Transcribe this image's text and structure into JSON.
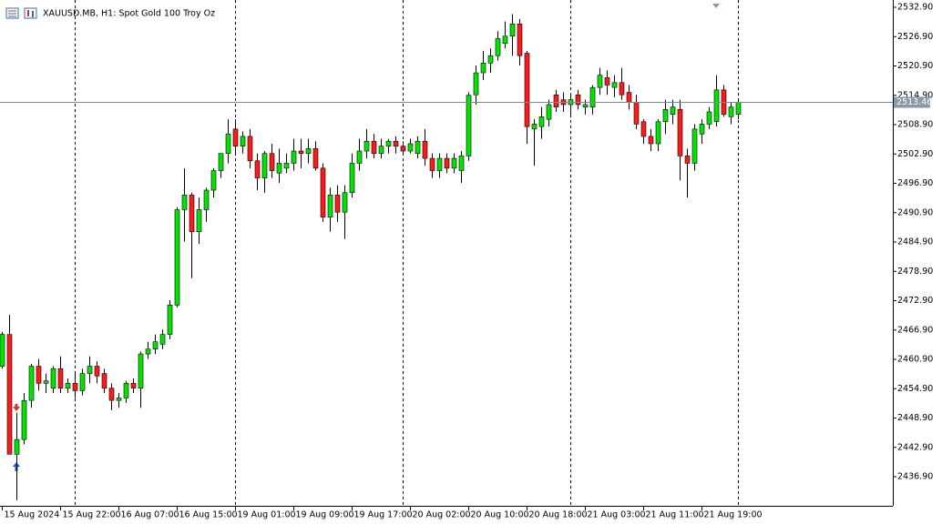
{
  "chart_data": {
    "type": "candlestick",
    "title": "XAUUSD.MB, H1:  Spot Gold 100 Troy Oz",
    "categories": [
      "15 Aug 2024",
      null,
      null,
      null,
      null,
      null,
      null,
      null,
      "15 Aug 22:00",
      null,
      null,
      null,
      null,
      null,
      null,
      null,
      "16 Aug 07:00",
      null,
      null,
      null,
      null,
      null,
      null,
      null,
      "16 Aug 15:00",
      null,
      null,
      null,
      null,
      null,
      null,
      null,
      "19 Aug 01:00",
      null,
      null,
      null,
      null,
      null,
      null,
      null,
      "19 Aug 09:00",
      null,
      null,
      null,
      null,
      null,
      null,
      null,
      "19 Aug 17:00",
      null,
      null,
      null,
      null,
      null,
      null,
      null,
      "20 Aug 02:00",
      null,
      null,
      null,
      null,
      null,
      null,
      null,
      "20 Aug 10:00",
      null,
      null,
      null,
      null,
      null,
      null,
      null,
      "20 Aug 18:00",
      null,
      null,
      null,
      null,
      null,
      null,
      null,
      "21 Aug 03:00",
      null,
      null,
      null,
      null,
      null,
      null,
      null,
      "21 Aug 11:00",
      null,
      null,
      null,
      null,
      null,
      null,
      null,
      "21 Aug 19:00",
      null,
      null,
      null,
      null,
      null
    ],
    "open": [
      2459.5,
      2466,
      2441.5,
      2444.5,
      2452.5,
      2459.5,
      2456,
      2455,
      2459,
      2455,
      2456,
      2454.5,
      2458,
      2459.5,
      2458,
      2455,
      2452.5,
      2453,
      2456,
      2455,
      2462,
      2463,
      2464,
      2466,
      2472,
      2491.5,
      2494.5,
      2487,
      2491.5,
      2495.5,
      2499.5,
      2503,
      2508,
      2504.5,
      2506.5,
      2501.5,
      2498,
      2503,
      2499,
      2500,
      2501,
      2503.5,
      2503,
      2504,
      2500,
      2490,
      2494.5,
      2491,
      2495,
      2501,
      2503.5,
      2505.5,
      2503,
      2504.5,
      2505.5,
      2504.5,
      2503.5,
      2503,
      2505.5,
      2502,
      2499.5,
      2502,
      2500,
      2499.5,
      2502.5,
      2515,
      2519.5,
      2521.5,
      2523,
      2525.5,
      2527,
      2529.5,
      2523.5,
      2508,
      2508.5,
      2510,
      2515,
      2514,
      2513,
      2515,
      2512.5,
      2512.5,
      2516.5,
      2518.5,
      2516.5,
      2517.5,
      2515.5,
      2513.5,
      2509.5,
      2506.5,
      2505,
      2509.5,
      2511,
      2512,
      2502.5,
      2501,
      2507,
      2509,
      2509.5,
      2516,
      2510.5,
      2511
    ],
    "high": [
      2466.5,
      2470,
      2450,
      2454,
      2460,
      2461,
      2458,
      2459.5,
      2461.5,
      2457,
      2458,
      2459,
      2461.5,
      2460.5,
      2459,
      2456,
      2454,
      2456.5,
      2457,
      2462.5,
      2464.5,
      2466,
      2467,
      2473,
      2492,
      2500,
      2495,
      2494,
      2496,
      2500,
      2503,
      2510,
      2510,
      2507.5,
      2508,
      2503,
      2503.5,
      2505,
      2504,
      2503,
      2506,
      2506,
      2506,
      2505.5,
      2501,
      2496,
      2496.5,
      2496.5,
      2503,
      2506,
      2508,
      2507,
      2506,
      2506,
      2506.5,
      2505.5,
      2506,
      2506.5,
      2508,
      2503,
      2503,
      2503,
      2503,
      2503.5,
      2515.5,
      2521,
      2524,
      2524.5,
      2528,
      2530,
      2531.5,
      2530.5,
      2524,
      2510,
      2512.5,
      2514,
      2516,
      2515.5,
      2515,
      2516,
      2514,
      2517,
      2520.5,
      2520,
      2519,
      2520.5,
      2517,
      2515,
      2510,
      2508,
      2510,
      2514,
      2514,
      2514,
      2504,
      2509,
      2510,
      2512.5,
      2519,
      2517,
      2513.5,
      2514
    ],
    "low": [
      2459,
      2441.5,
      2432.1,
      2443.5,
      2451,
      2454.5,
      2454,
      2454,
      2454,
      2454,
      2453,
      2453.5,
      2456,
      2456,
      2454,
      2450.5,
      2451,
      2452,
      2454,
      2451,
      2461,
      2462,
      2463,
      2465,
      2471.5,
      2485,
      2477.5,
      2484.5,
      2489,
      2494,
      2498,
      2501,
      2503,
      2503,
      2500,
      2495.5,
      2495,
      2498,
      2497,
      2499,
      2499.5,
      2500,
      2501,
      2499.5,
      2489,
      2487,
      2489,
      2485.5,
      2494,
      2499.5,
      2502,
      2502,
      2502,
      2503,
      2503,
      2503,
      2503,
      2502,
      2500.5,
      2498,
      2498,
      2499,
      2499,
      2497,
      2501.5,
      2513,
      2518,
      2519.5,
      2522,
      2524.5,
      2523,
      2521,
      2505,
      2500.5,
      2506,
      2508.5,
      2511.5,
      2511.5,
      2511,
      2512,
      2511,
      2511,
      2515,
      2515,
      2514.5,
      2514,
      2512,
      2508,
      2505,
      2503.5,
      2503.5,
      2507,
      2509,
      2497.5,
      2494,
      2499.5,
      2505,
      2508,
      2508.5,
      2510.5,
      2509,
      2510
    ],
    "close": [
      2466,
      2441.5,
      2444.5,
      2452.5,
      2459.5,
      2456,
      2456.5,
      2459,
      2455,
      2456,
      2454.5,
      2458,
      2459.5,
      2457.5,
      2455,
      2452.5,
      2453,
      2456,
      2455,
      2462,
      2463,
      2464.5,
      2466,
      2472,
      2491.5,
      2494.5,
      2487,
      2491.5,
      2495.5,
      2499.5,
      2503,
      2507,
      2504.5,
      2506.5,
      2501.5,
      2498,
      2503,
      2499.5,
      2501,
      2501,
      2503.5,
      2503,
      2504,
      2500,
      2490,
      2494.5,
      2491,
      2495,
      2501,
      2503.5,
      2505.5,
      2503,
      2504.5,
      2505.5,
      2504.5,
      2503.5,
      2505,
      2505.5,
      2502,
      2499.5,
      2502,
      2500,
      2502,
      2502.5,
      2514.9,
      2519.5,
      2521.5,
      2523,
      2526.5,
      2527,
      2529.5,
      2523,
      2508.5,
      2509,
      2510.5,
      2513,
      2512.5,
      2513,
      2514,
      2513,
      2513,
      2516.5,
      2519,
      2517,
      2517.5,
      2515,
      2513.5,
      2509,
      2506.5,
      2505,
      2509.5,
      2512,
      2512.5,
      2502.5,
      2501,
      2508,
      2509,
      2511.5,
      2516,
      2511,
      2512.5,
      2513.46
    ],
    "up_color": "#00e600",
    "down_color": "#ff1a1a",
    "current_price": 2513.46,
    "ylim": [
      2430.95,
      2534.39
    ],
    "yticks": [
      {
        "value": 2436.9,
        "label": "2436.90"
      },
      {
        "value": 2442.9,
        "label": "2442.90"
      },
      {
        "value": 2448.9,
        "label": "2448.90"
      },
      {
        "value": 2454.9,
        "label": "2454.90"
      },
      {
        "value": 2460.9,
        "label": "2460.90"
      },
      {
        "value": 2466.9,
        "label": "2466.90"
      },
      {
        "value": 2472.9,
        "label": "2472.90"
      },
      {
        "value": 2478.9,
        "label": "2478.90"
      },
      {
        "value": 2484.9,
        "label": "2484.90"
      },
      {
        "value": 2490.9,
        "label": "2490.90"
      },
      {
        "value": 2496.9,
        "label": "2496.90"
      },
      {
        "value": 2502.9,
        "label": "2502.90"
      },
      {
        "value": 2508.9,
        "label": "2508.90"
      },
      {
        "value": 2514.9,
        "label": "2514.90"
      },
      {
        "value": 2520.9,
        "label": "2520.90"
      },
      {
        "value": 2526.9,
        "label": "2526.90"
      },
      {
        "value": 2532.9,
        "label": "2532.90"
      }
    ],
    "grid": false
  }
}
